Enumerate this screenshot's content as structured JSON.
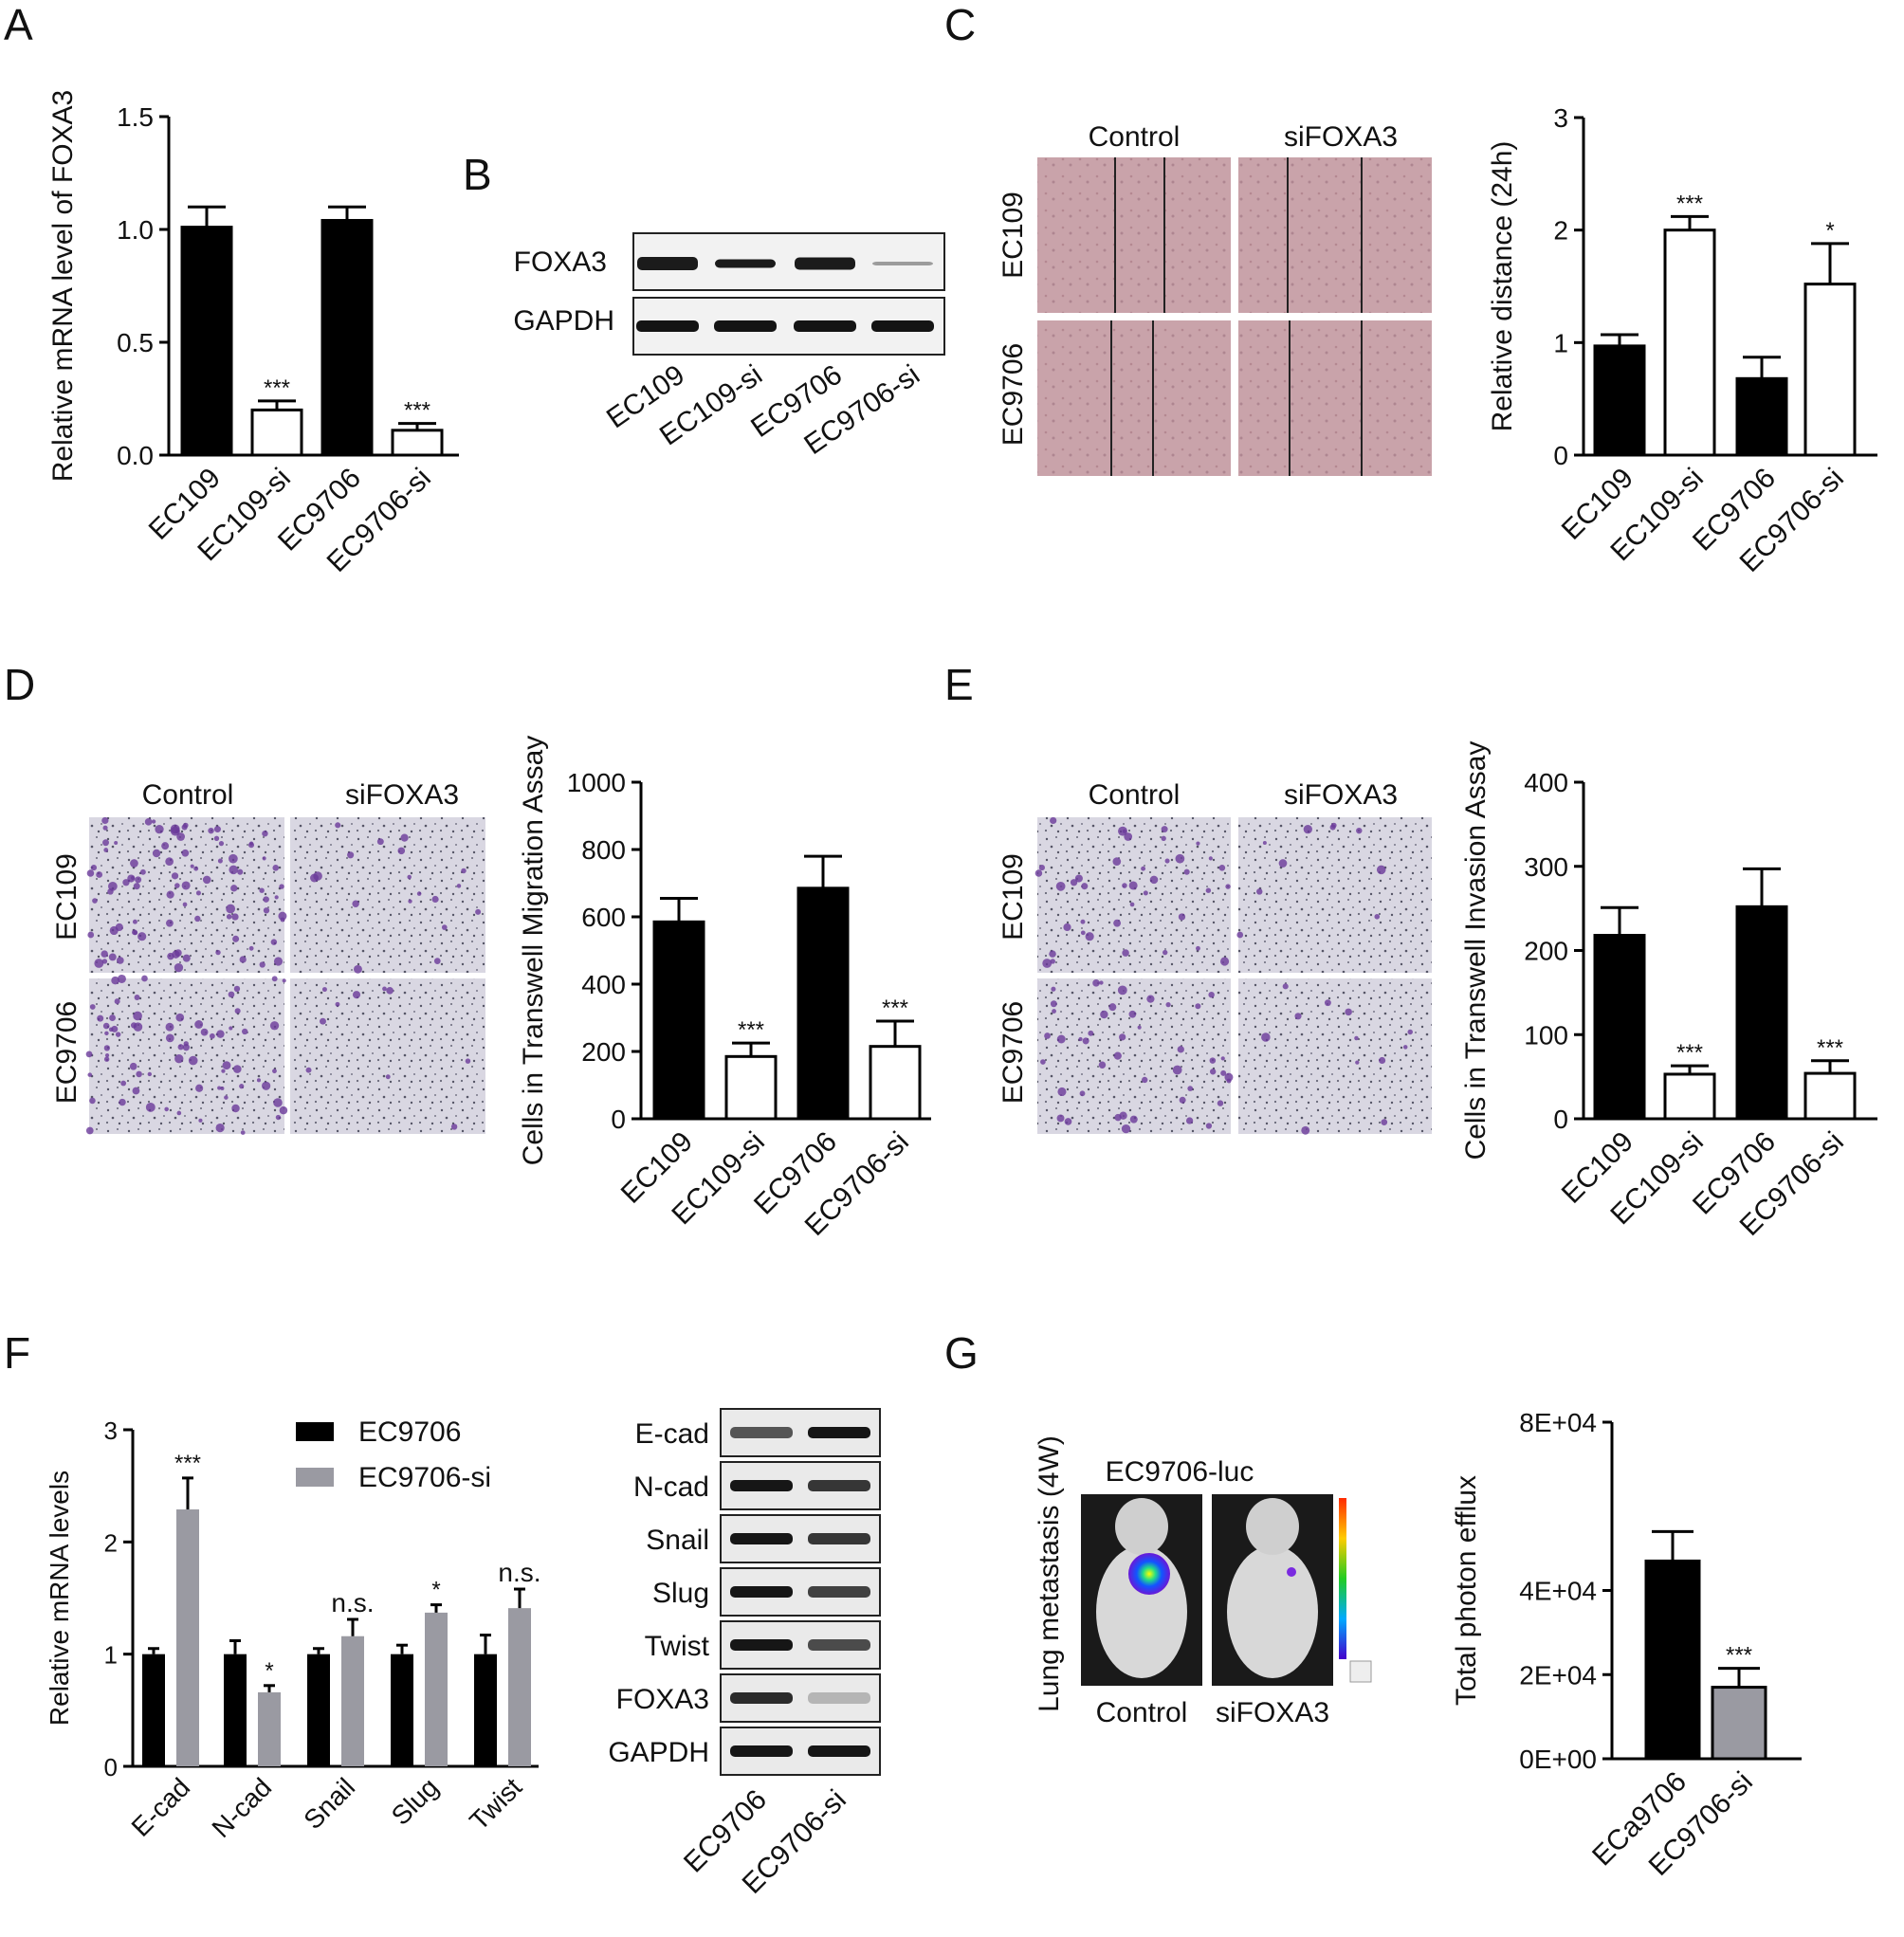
{
  "panels": {
    "A": "A",
    "B": "B",
    "C": "C",
    "D": "D",
    "E": "E",
    "F": "F",
    "G": "G"
  },
  "labels": {
    "control": "Control",
    "sifoxa3": "siFOXA3",
    "ec109": "EC109",
    "ec9706": "EC9706",
    "ec9706_luc": "EC9706-luc",
    "lung_metastasis": "Lung metastasis (4W)",
    "sig3": "***",
    "sig1": "*",
    "ns": "n.s."
  },
  "blot_B": {
    "bands": [
      "FOXA3",
      "GAPDH"
    ],
    "lanes": [
      "EC109",
      "EC109-si",
      "EC9706",
      "EC9706-si"
    ]
  },
  "blot_F": {
    "bands": [
      "E-cad",
      "N-cad",
      "Snail",
      "Slug",
      "Twist",
      "FOXA3",
      "GAPDH"
    ],
    "lanes": [
      "EC9706",
      "EC9706-si"
    ]
  },
  "colors": {
    "control": "#000000",
    "si_open": "#ffffff",
    "si_grey": "#9a9aa2"
  },
  "chart_data": [
    {
      "id": "A",
      "type": "bar",
      "ylabel": "Relative mRNA level of FOXA3",
      "ylim": [
        0,
        1.5
      ],
      "yticks": [
        "0.0",
        "0.5",
        "1.0",
        "1.5"
      ],
      "categories": [
        "EC109",
        "EC109-si",
        "EC9706",
        "EC9706-si"
      ],
      "values": [
        1.01,
        0.2,
        1.04,
        0.11
      ],
      "errors": [
        0.09,
        0.04,
        0.06,
        0.03
      ],
      "annotations": [
        "",
        "***",
        "",
        "***"
      ]
    },
    {
      "id": "C",
      "type": "bar",
      "ylabel": "Relative distance (24h)",
      "ylim": [
        0,
        3
      ],
      "yticks": [
        "0",
        "1",
        "2",
        "3"
      ],
      "categories": [
        "EC109",
        "EC109-si",
        "EC9706",
        "EC9706-si"
      ],
      "values": [
        0.97,
        2.0,
        0.68,
        1.52
      ],
      "errors": [
        0.1,
        0.12,
        0.19,
        0.36
      ],
      "annotations": [
        "",
        "***",
        "",
        "*"
      ]
    },
    {
      "id": "D",
      "type": "bar",
      "ylabel": "Cells in Transwell Migration Assay",
      "ylim": [
        0,
        1000
      ],
      "yticks": [
        "0",
        "200",
        "400",
        "600",
        "800",
        "1000"
      ],
      "categories": [
        "EC109",
        "EC109-si",
        "EC9706",
        "EC9706-si"
      ],
      "values": [
        585,
        185,
        685,
        215
      ],
      "errors": [
        70,
        40,
        95,
        75
      ],
      "annotations": [
        "",
        "***",
        "",
        "***"
      ]
    },
    {
      "id": "E",
      "type": "bar",
      "ylabel": "Cells in Transwell Invasion Assay",
      "ylim": [
        0,
        400
      ],
      "yticks": [
        "0",
        "100",
        "200",
        "300",
        "400"
      ],
      "categories": [
        "EC109",
        "EC109-si",
        "EC9706",
        "EC9706-si"
      ],
      "values": [
        218,
        53,
        252,
        54
      ],
      "errors": [
        33,
        10,
        45,
        15
      ],
      "annotations": [
        "",
        "***",
        "",
        "***"
      ]
    },
    {
      "id": "F",
      "type": "bar",
      "ylabel": "Relative mRNA levels",
      "ylim": [
        0,
        3
      ],
      "yticks": [
        "0",
        "1",
        "2",
        "3"
      ],
      "categories": [
        "E-cad",
        "N-cad",
        "Snail",
        "Slug",
        "Twist"
      ],
      "series": [
        {
          "name": "EC9706",
          "values": [
            1.0,
            1.0,
            1.0,
            1.0,
            1.0
          ],
          "errors": [
            0.05,
            0.12,
            0.05,
            0.08,
            0.17
          ]
        },
        {
          "name": "EC9706-si",
          "values": [
            2.29,
            0.66,
            1.16,
            1.37,
            1.41
          ],
          "errors": [
            0.28,
            0.06,
            0.15,
            0.07,
            0.17
          ]
        }
      ],
      "annotations": [
        "***",
        "*",
        "n.s.",
        "*",
        "n.s."
      ],
      "legend": "top"
    },
    {
      "id": "G",
      "type": "bar",
      "ylabel": "Total photon efflux",
      "ylim": [
        0,
        80000
      ],
      "yticks": [
        "0E+00",
        "2E+04",
        "4E+04",
        "8E+04"
      ],
      "categories": [
        "ECa9706",
        "EC9706-si"
      ],
      "values": [
        47000,
        17000
      ],
      "errors": [
        7000,
        4500
      ],
      "annotations": [
        "",
        "***"
      ]
    }
  ]
}
